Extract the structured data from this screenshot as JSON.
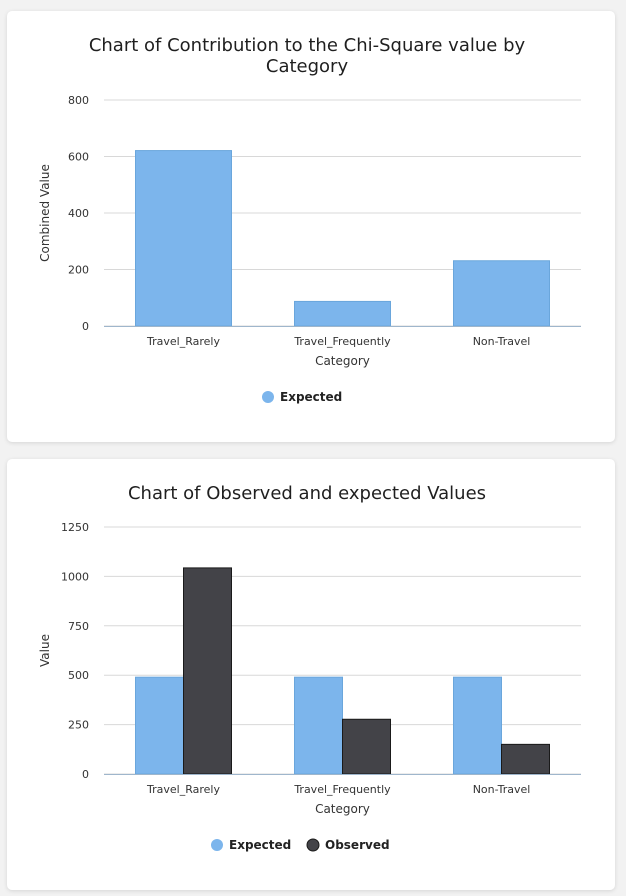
{
  "chart_data": [
    {
      "type": "bar",
      "title_lines": [
        "Chart of Contribution to the Chi-Square value by",
        "Category"
      ],
      "xlabel": "Category",
      "ylabel": "Combined Value",
      "categories": [
        "Travel_Rarely",
        "Travel_Frequently",
        "Non-Travel"
      ],
      "series": [
        {
          "name": "Expected",
          "color": "#7cb5ec",
          "values": [
            621,
            87,
            231
          ]
        }
      ],
      "ylim": [
        0,
        800
      ],
      "yticks": [
        0,
        200,
        400,
        600,
        800
      ],
      "grid": true,
      "legend": "bottom-center"
    },
    {
      "type": "bar",
      "title_lines": [
        "Chart of Observed and expected Values"
      ],
      "xlabel": "Category",
      "ylabel": "Value",
      "categories": [
        "Travel_Rarely",
        "Travel_Frequently",
        "Non-Travel"
      ],
      "series": [
        {
          "name": "Expected",
          "color": "#7cb5ec",
          "values": [
            490,
            490,
            490
          ]
        },
        {
          "name": "Observed",
          "color": "#434348",
          "values": [
            1043,
            277,
            150
          ]
        }
      ],
      "ylim": [
        0,
        1250
      ],
      "yticks": [
        0,
        250,
        500,
        750,
        1000,
        1250
      ],
      "grid": true,
      "legend": "bottom-center"
    }
  ]
}
